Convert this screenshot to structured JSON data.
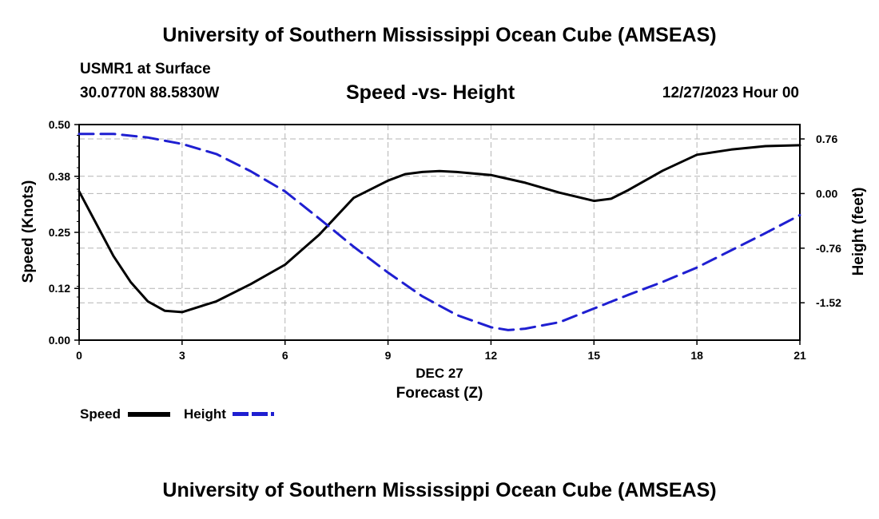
{
  "header": {
    "title_top": "University of Southern Mississippi Ocean Cube (AMSEAS)",
    "station": "USMR1 at Surface",
    "coords": "30.0770N  88.5830W",
    "date": "12/27/2023 Hour 00"
  },
  "footer": {
    "title_bottom": "University of Southern Mississippi Ocean Cube (AMSEAS)"
  },
  "chart_data": {
    "type": "line",
    "title": "Speed -vs- Height",
    "xlabel": "Forecast (Z)",
    "xlabel_date": "DEC 27",
    "ylabel": "Speed (Knots)",
    "y2label": "Height (feet)",
    "xlim": [
      0,
      21
    ],
    "ylim": [
      0,
      0.5
    ],
    "y2lim": [
      -2.04,
      0.96
    ],
    "x_ticks": [
      "0",
      "3",
      "6",
      "9",
      "12",
      "15",
      "18",
      "21"
    ],
    "y_ticks": [
      "0.00",
      "0.12",
      "0.25",
      "0.38",
      "0.50"
    ],
    "y2_ticks": [
      "0.76",
      "0.00",
      "-0.76",
      "-1.52"
    ],
    "grid": true,
    "legend": {
      "position": "bottom-left",
      "labels": [
        "Speed",
        "Height"
      ]
    },
    "series": [
      {
        "name": "Speed",
        "axis": "left",
        "color": "#000000",
        "style": "solid",
        "x": [
          0,
          1,
          1.5,
          2,
          2.5,
          3,
          4,
          5,
          6,
          7,
          8,
          9,
          9.5,
          10,
          10.5,
          11,
          12,
          13,
          14,
          15,
          15.5,
          16,
          17,
          18,
          19,
          20,
          21
        ],
        "values": [
          0.345,
          0.195,
          0.135,
          0.09,
          0.068,
          0.065,
          0.09,
          0.13,
          0.175,
          0.245,
          0.33,
          0.37,
          0.385,
          0.39,
          0.392,
          0.39,
          0.383,
          0.365,
          0.342,
          0.323,
          0.328,
          0.348,
          0.393,
          0.43,
          0.442,
          0.45,
          0.452
        ]
      },
      {
        "name": "Height",
        "axis": "right",
        "color": "#1f1fd1",
        "style": "dashed",
        "x": [
          0,
          1,
          2,
          3,
          4,
          5,
          6,
          7,
          8,
          9,
          10,
          11,
          12,
          12.5,
          13,
          14,
          15,
          16,
          17,
          18,
          19,
          20,
          21
        ],
        "values": [
          0.83,
          0.83,
          0.78,
          0.69,
          0.55,
          0.31,
          0.03,
          -0.35,
          -0.74,
          -1.1,
          -1.43,
          -1.69,
          -1.86,
          -1.9,
          -1.88,
          -1.79,
          -1.6,
          -1.41,
          -1.23,
          -1.03,
          -0.79,
          -0.55,
          -0.3
        ]
      }
    ]
  }
}
